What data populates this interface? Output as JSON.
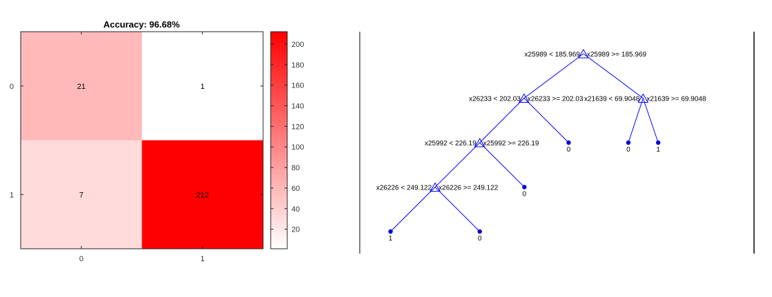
{
  "chart_data": [
    {
      "type": "heatmap",
      "title": "Accuracy: 96.68%",
      "row_labels": [
        "0",
        "1"
      ],
      "col_labels": [
        "0",
        "1"
      ],
      "values": [
        [
          21,
          1
        ],
        [
          7,
          212
        ]
      ],
      "colorbar": {
        "ticks": [
          20,
          40,
          60,
          80,
          100,
          120,
          140,
          160,
          180,
          200
        ],
        "range": [
          1,
          212
        ],
        "low_color": "#ffffff",
        "high_color": "#ff0000"
      }
    },
    {
      "type": "tree",
      "line_color": "#0000ff",
      "leaf_color": "#0000dd",
      "nodes": [
        {
          "id": "n0",
          "gx": 0.625,
          "gy": 1.0,
          "left": "x25989 < 185.969",
          "right": "x25989 >= 185.969"
        },
        {
          "id": "n1",
          "gx": 0.444,
          "gy": 0.75,
          "left": "x26233 < 202.03",
          "right": "x26233 >= 202.03"
        },
        {
          "id": "n2",
          "gx": 0.807,
          "gy": 0.75,
          "left": "x21639 < 69.9048",
          "right": "x21639 >= 69.9048"
        },
        {
          "id": "n3",
          "gx": 0.309,
          "gy": 0.5,
          "left": "x25992 < 226.19",
          "right": "x25992 >= 226.19"
        },
        {
          "id": "n4",
          "gx": 0.173,
          "gy": 0.25,
          "left": "x26226 < 249.122",
          "right": "x26226 >= 249.122"
        }
      ],
      "leaves": [
        {
          "id": "l0",
          "gx": 0.58,
          "gy": 0.5,
          "label": "0"
        },
        {
          "id": "l1",
          "gx": 0.762,
          "gy": 0.5,
          "label": "0"
        },
        {
          "id": "l2",
          "gx": 0.853,
          "gy": 0.5,
          "label": "1"
        },
        {
          "id": "l3",
          "gx": 0.445,
          "gy": 0.25,
          "label": "0"
        },
        {
          "id": "l4",
          "gx": 0.037,
          "gy": 0.0,
          "label": "1"
        },
        {
          "id": "l5",
          "gx": 0.309,
          "gy": 0.0,
          "label": "0"
        }
      ],
      "edges": [
        [
          "n0",
          "n1"
        ],
        [
          "n0",
          "n2"
        ],
        [
          "n1",
          "n3"
        ],
        [
          "n1",
          "l0"
        ],
        [
          "n2",
          "l1"
        ],
        [
          "n2",
          "l2"
        ],
        [
          "n3",
          "n4"
        ],
        [
          "n3",
          "l3"
        ],
        [
          "n4",
          "l4"
        ],
        [
          "n4",
          "l5"
        ]
      ]
    }
  ]
}
